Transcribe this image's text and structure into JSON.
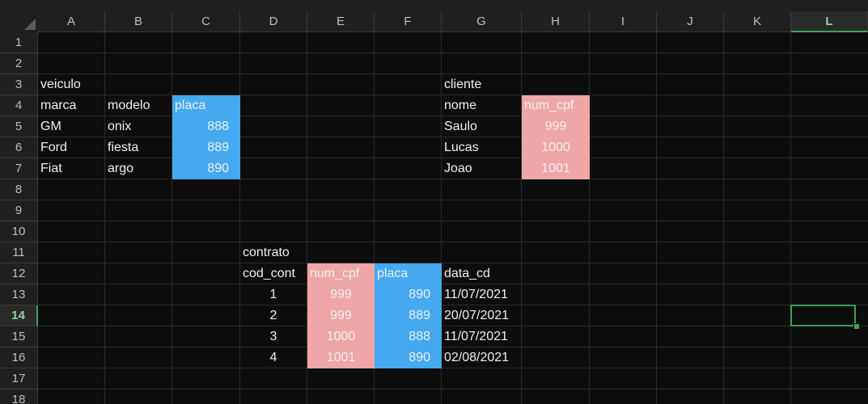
{
  "colors": {
    "accent": "#3f9e5a",
    "blue": "#45a9ef",
    "pink": "#eea6a6"
  },
  "selected_cell": "L14",
  "columns": [
    "A",
    "B",
    "C",
    "D",
    "E",
    "F",
    "G",
    "H",
    "I",
    "J",
    "K",
    "L"
  ],
  "rows": [
    "1",
    "2",
    "3",
    "4",
    "5",
    "6",
    "7",
    "8",
    "9",
    "10",
    "11",
    "12",
    "13",
    "14",
    "15",
    "16",
    "17",
    "18"
  ],
  "cells": [
    {
      "ref": "A3",
      "text": "veiculo"
    },
    {
      "ref": "A4",
      "text": "marca"
    },
    {
      "ref": "B4",
      "text": "modelo"
    },
    {
      "ref": "C4",
      "text": "placa",
      "fill": "blue"
    },
    {
      "ref": "A5",
      "text": "GM"
    },
    {
      "ref": "B5",
      "text": "onix"
    },
    {
      "ref": "C5",
      "text": "888",
      "fill": "blue",
      "align": "num"
    },
    {
      "ref": "A6",
      "text": "Ford"
    },
    {
      "ref": "B6",
      "text": "fiesta"
    },
    {
      "ref": "C6",
      "text": "889",
      "fill": "blue",
      "align": "num"
    },
    {
      "ref": "A7",
      "text": "Fiat"
    },
    {
      "ref": "B7",
      "text": "argo"
    },
    {
      "ref": "C7",
      "text": "890",
      "fill": "blue",
      "align": "num"
    },
    {
      "ref": "G3",
      "text": "cliente"
    },
    {
      "ref": "G4",
      "text": "nome"
    },
    {
      "ref": "H4",
      "text": "num_cpf",
      "fill": "pink"
    },
    {
      "ref": "G5",
      "text": "Saulo"
    },
    {
      "ref": "H5",
      "text": "999",
      "fill": "pink",
      "align": "center"
    },
    {
      "ref": "G6",
      "text": "Lucas"
    },
    {
      "ref": "H6",
      "text": "1000",
      "fill": "pink",
      "align": "center"
    },
    {
      "ref": "G7",
      "text": "Joao"
    },
    {
      "ref": "H7",
      "text": "1001",
      "fill": "pink",
      "align": "center"
    },
    {
      "ref": "D11",
      "text": "contrato"
    },
    {
      "ref": "D12",
      "text": "cod_cont"
    },
    {
      "ref": "E12",
      "text": "num_cpf",
      "fill": "pink"
    },
    {
      "ref": "F12",
      "text": "placa",
      "fill": "blue"
    },
    {
      "ref": "G12",
      "text": "data_cd"
    },
    {
      "ref": "D13",
      "text": "1",
      "align": "center"
    },
    {
      "ref": "E13",
      "text": "999",
      "fill": "pink",
      "align": "center"
    },
    {
      "ref": "F13",
      "text": "890",
      "fill": "blue",
      "align": "num"
    },
    {
      "ref": "G13",
      "text": "11/07/2021"
    },
    {
      "ref": "D14",
      "text": "2",
      "align": "center"
    },
    {
      "ref": "E14",
      "text": "999",
      "fill": "pink",
      "align": "center"
    },
    {
      "ref": "F14",
      "text": "889",
      "fill": "blue",
      "align": "num"
    },
    {
      "ref": "G14",
      "text": "20/07/2021"
    },
    {
      "ref": "D15",
      "text": "3",
      "align": "center"
    },
    {
      "ref": "E15",
      "text": "1000",
      "fill": "pink",
      "align": "center"
    },
    {
      "ref": "F15",
      "text": "888",
      "fill": "blue",
      "align": "num"
    },
    {
      "ref": "G15",
      "text": "11/07/2021"
    },
    {
      "ref": "D16",
      "text": "4",
      "align": "center"
    },
    {
      "ref": "E16",
      "text": "1001",
      "fill": "pink",
      "align": "center"
    },
    {
      "ref": "F16",
      "text": "890",
      "fill": "blue",
      "align": "num"
    },
    {
      "ref": "G16",
      "text": "02/08/2021"
    }
  ]
}
